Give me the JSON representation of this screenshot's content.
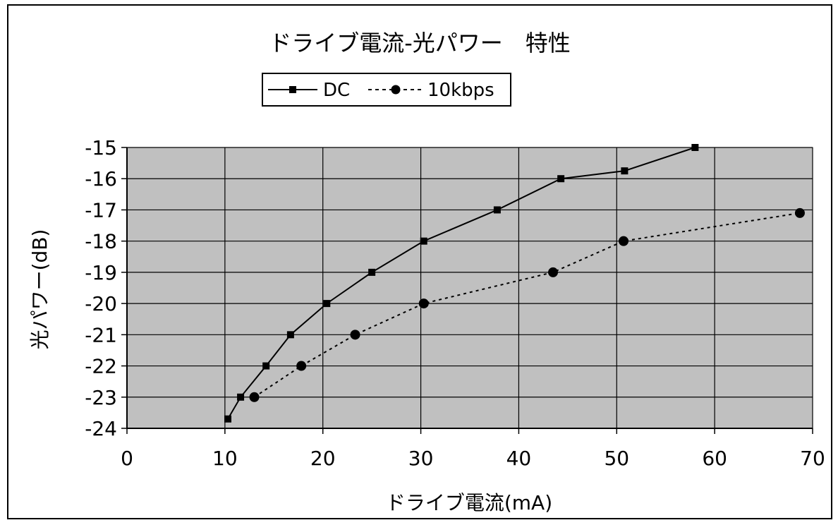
{
  "chart_data": {
    "type": "line",
    "title": "ドライブ電流-光パワー　特性",
    "xlabel": "ドライブ電流(mA)",
    "ylabel": "光パワー(dB)",
    "xlim": [
      0,
      70
    ],
    "ylim": [
      -24,
      -15
    ],
    "x_ticks": [
      "0",
      "10",
      "20",
      "30",
      "40",
      "50",
      "60",
      "70"
    ],
    "y_ticks": [
      "-15",
      "-16",
      "-17",
      "-18",
      "-19",
      "-20",
      "-21",
      "-22",
      "-23",
      "-24"
    ],
    "grid": true,
    "plot_background": "#c0c0c0",
    "legend_placement": "top-center",
    "series": [
      {
        "name": "DC",
        "marker": "square",
        "line_style": "solid",
        "color": "#000000",
        "x": [
          10.3,
          11.6,
          14.2,
          16.7,
          20.4,
          25.0,
          30.3,
          37.8,
          44.3,
          50.8,
          58.0
        ],
        "y": [
          -23.7,
          -23.0,
          -22.0,
          -21.0,
          -20.0,
          -19.0,
          -18.0,
          -17.0,
          -16.0,
          -15.75,
          -15.0
        ]
      },
      {
        "name": "10kbps",
        "marker": "circle",
        "line_style": "dotted",
        "color": "#000000",
        "x": [
          13.0,
          17.8,
          23.3,
          30.3,
          43.5,
          50.7,
          68.7
        ],
        "y": [
          -23.0,
          -22.0,
          -21.0,
          -20.0,
          -19.0,
          -18.0,
          -17.1
        ]
      }
    ]
  }
}
